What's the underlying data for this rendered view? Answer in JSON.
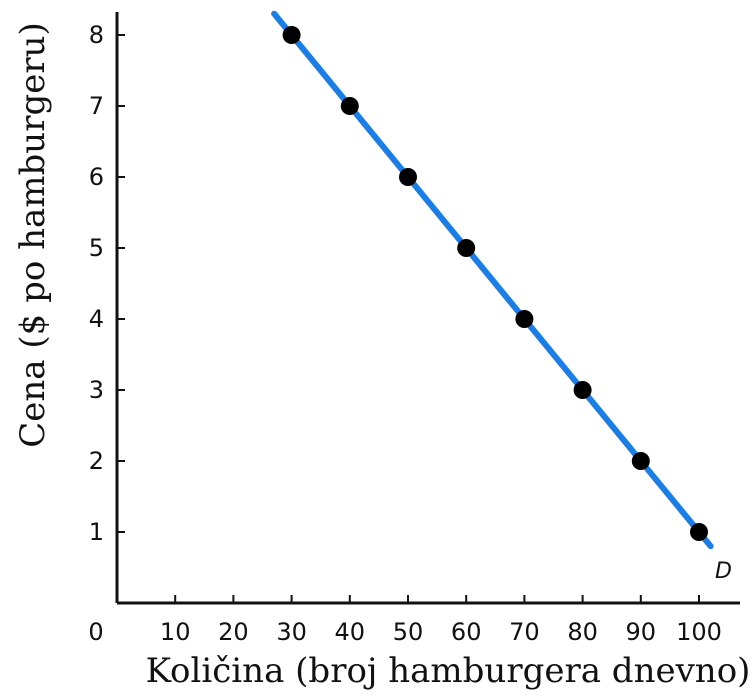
{
  "chart_data": {
    "type": "scatter",
    "title": "",
    "xlabel": "Količina (broj hamburgera dnevno)",
    "ylabel": "Cena ($ po hamburgeru)",
    "origin_label": "0",
    "x_ticks": [
      10,
      20,
      30,
      40,
      50,
      60,
      70,
      80,
      90,
      100
    ],
    "y_ticks": [
      1,
      2,
      3,
      4,
      5,
      6,
      7,
      8
    ],
    "xlim": [
      0,
      110
    ],
    "ylim": [
      0,
      8.3
    ],
    "grid": false,
    "legend": "none",
    "series": [
      {
        "name": "D",
        "points": [
          {
            "x": 30,
            "y": 8
          },
          {
            "x": 40,
            "y": 7
          },
          {
            "x": 50,
            "y": 6
          },
          {
            "x": 60,
            "y": 5
          },
          {
            "x": 70,
            "y": 4
          },
          {
            "x": 80,
            "y": 3
          },
          {
            "x": 90,
            "y": 2
          },
          {
            "x": 100,
            "y": 1
          }
        ],
        "line": {
          "x1": 27,
          "y1": 8.3,
          "x2": 102,
          "y2": 0.8
        },
        "line_color": "#1a7ee6",
        "point_color": "#000000"
      }
    ]
  }
}
